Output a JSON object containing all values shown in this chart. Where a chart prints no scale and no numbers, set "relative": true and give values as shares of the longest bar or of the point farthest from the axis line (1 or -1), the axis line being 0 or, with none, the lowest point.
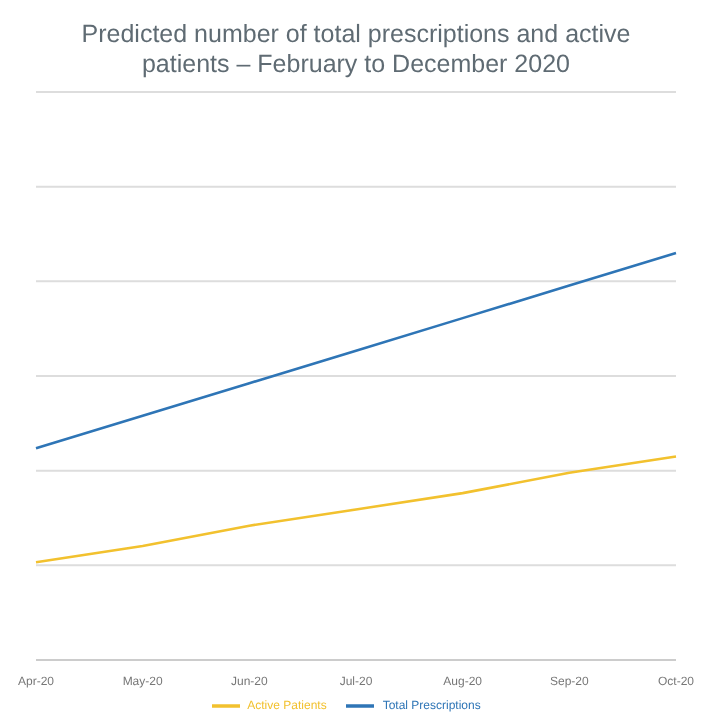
{
  "chart_data": {
    "type": "line",
    "title": "Predicted number of total prescriptions and active patients – February to December 2020",
    "categories": [
      "Apr-20",
      "May-20",
      "Jun-20",
      "Jul-20",
      "Aug-20",
      "Sep-20",
      "Oct-20"
    ],
    "relative": true,
    "grid": "y",
    "legend": "bottom",
    "marker": "none",
    "line_style": "solid",
    "series": [
      {
        "name": "Active Patients",
        "color": "#f2c12e",
        "values": [
          0.24,
          0.28,
          0.33,
          0.37,
          0.41,
          0.46,
          0.5
        ]
      },
      {
        "name": "Total Prescriptions",
        "color": "#2e75b6",
        "values": [
          0.52,
          0.6,
          0.68,
          0.76,
          0.84,
          0.92,
          1.0
        ]
      }
    ]
  }
}
